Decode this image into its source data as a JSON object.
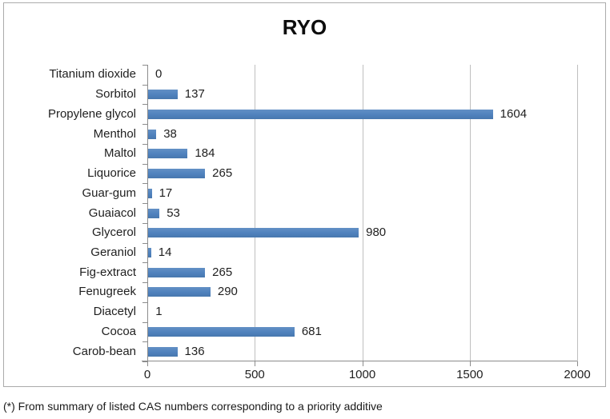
{
  "chart_data": {
    "type": "bar",
    "orientation": "horizontal",
    "title": "RYO",
    "categories": [
      "Titanium dioxide",
      "Sorbitol",
      "Propylene glycol",
      "Menthol",
      "Maltol",
      "Liquorice",
      "Guar-gum",
      "Guaiacol",
      "Glycerol",
      "Geraniol",
      "Fig-extract",
      "Fenugreek",
      "Diacetyl",
      "Cocoa",
      "Carob-bean"
    ],
    "values": [
      0,
      137,
      1604,
      38,
      184,
      265,
      17,
      53,
      980,
      14,
      265,
      290,
      1,
      681,
      136
    ],
    "xlabel": "",
    "ylabel": "",
    "xlim": [
      0,
      2000
    ],
    "x_ticks": [
      0,
      500,
      1000,
      1500,
      2000
    ],
    "grid": true,
    "legend": false,
    "data_labels": true,
    "bar_color": "#4f81bd",
    "gridline_color": "#bfbfbf",
    "axis_color": "#8c8c8c"
  },
  "footnote": "(*) From summary of listed CAS numbers corresponding to a priority additive"
}
